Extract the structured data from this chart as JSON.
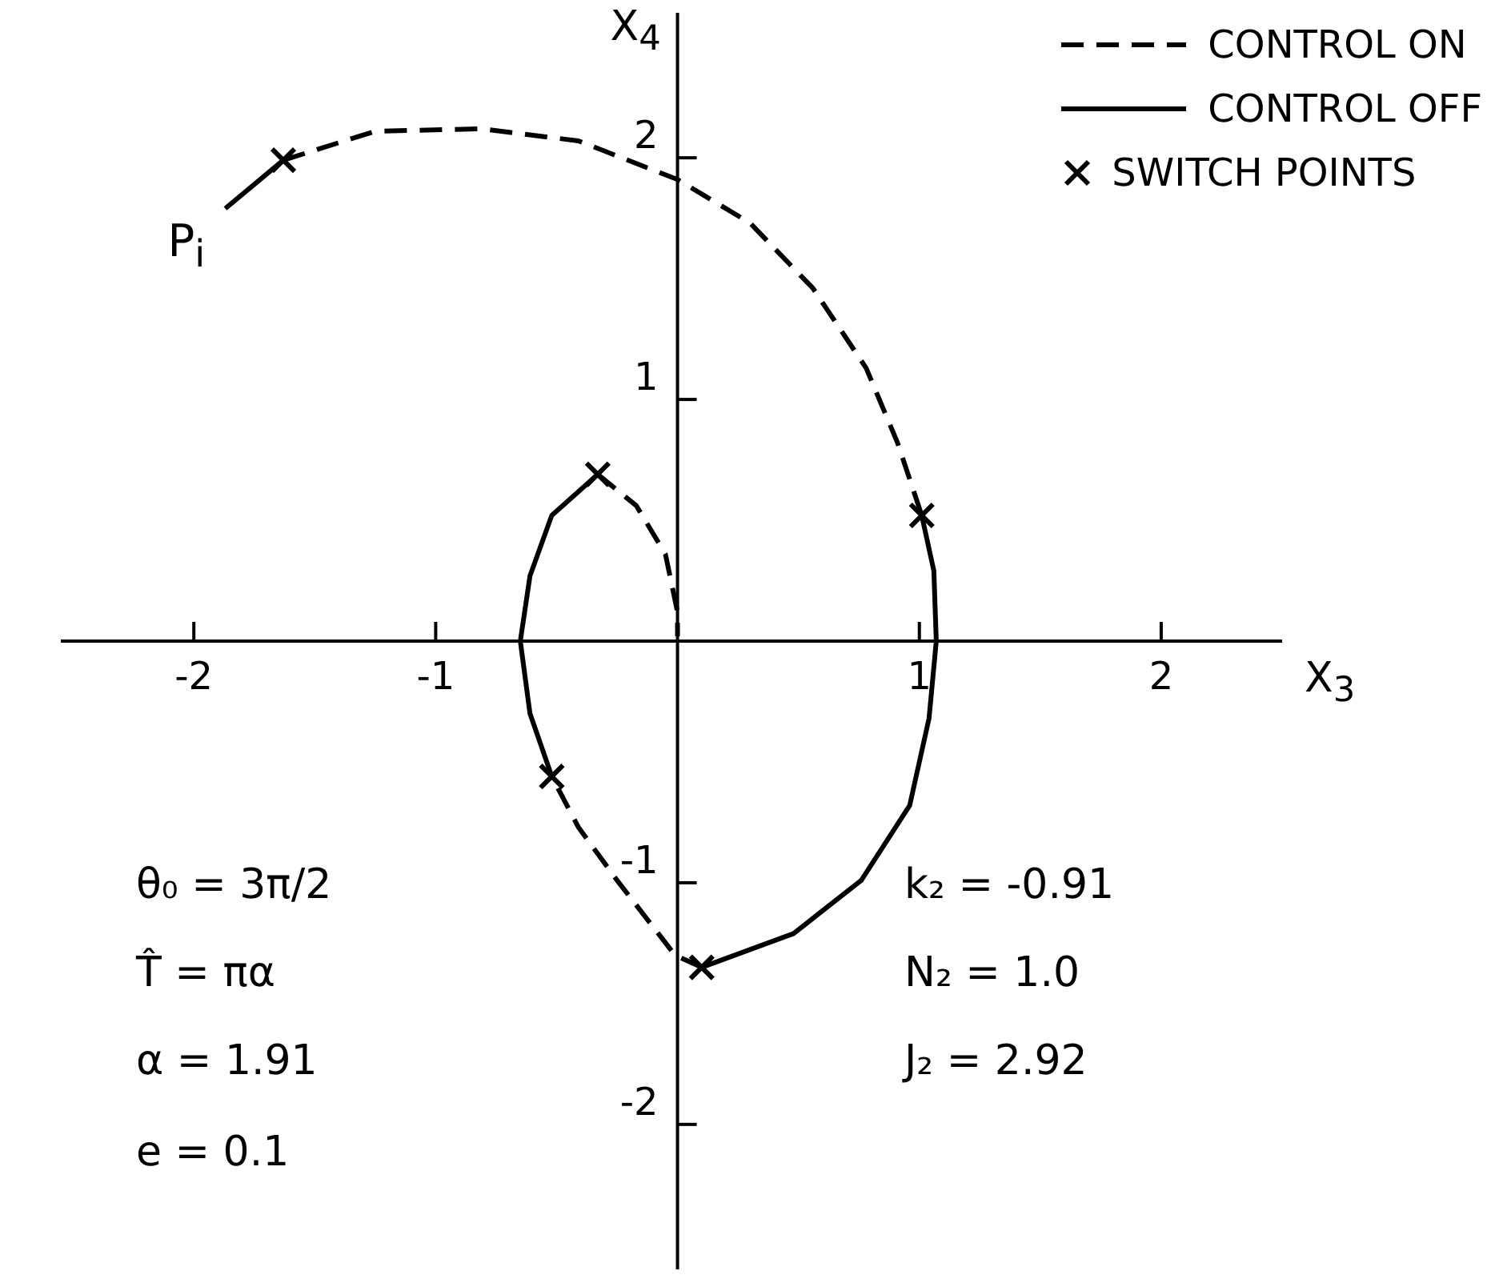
{
  "chart_data": {
    "type": "line",
    "xlabel": "X$_{3}$",
    "ylabel": "X$_{4}$",
    "xlim": [
      -2.55,
      2.5
    ],
    "ylim": [
      -2.6,
      2.6
    ],
    "xticks": [
      -2,
      -1,
      1,
      2
    ],
    "yticks": [
      -2,
      -1,
      1,
      2
    ],
    "grid": false,
    "legend": "top right",
    "marker": "none",
    "series": [
      {
        "name": "CONTROL ON",
        "color": "#000000",
        "line_style": "dashed",
        "x": [
          -1.63,
          -1.25,
          -0.81,
          -0.41,
          0,
          0.3,
          0.56,
          0.78,
          0.91,
          1.01,
          null,
          0.1,
          -0.01,
          -0.25,
          -0.41,
          -0.52,
          null,
          -0.33,
          -0.17,
          -0.05,
          0,
          0
        ],
        "values": [
          1.99,
          2.11,
          2.12,
          2.07,
          1.91,
          1.73,
          1.46,
          1.13,
          0.82,
          0.52,
          null,
          -1.35,
          -1.3,
          -0.99,
          -0.77,
          -0.56,
          null,
          0.69,
          0.56,
          0.36,
          0.12,
          0.02
        ]
      },
      {
        "name": "CONTROL OFF",
        "color": "#000000",
        "line_style": "solid",
        "x": [
          -1.87,
          -1.63,
          null,
          1.01,
          1.06,
          1.07,
          1.04,
          0.96,
          0.76,
          0.48,
          0.1,
          null,
          -0.52,
          -0.61,
          -0.65,
          -0.61,
          -0.52,
          -0.33
        ],
        "values": [
          1.79,
          1.99,
          null,
          0.52,
          0.29,
          0,
          -0.32,
          -0.68,
          -0.99,
          -1.21,
          -1.35,
          null,
          -0.56,
          -0.3,
          0,
          0.27,
          0.52,
          0.69
        ]
      },
      {
        "name": "SWITCH POINTS",
        "type": "scatter",
        "color": "#000000",
        "marker": "cross",
        "x": [
          -1.63,
          1.01,
          0.1,
          -0.52,
          -0.33
        ],
        "values": [
          1.99,
          0.52,
          -1.35,
          -0.56,
          0.69
        ]
      }
    ],
    "annotations": [
      {
        "text": "P$_{i}$",
        "x": -1.87,
        "y": 1.79
      },
      "θ₀ = 3π/2",
      "T̂ = πα",
      "α = 1.91",
      "e = 0.1",
      "k₂ = -0.91",
      "N₂ = 1.0",
      "J₂ = 2.92"
    ]
  }
}
